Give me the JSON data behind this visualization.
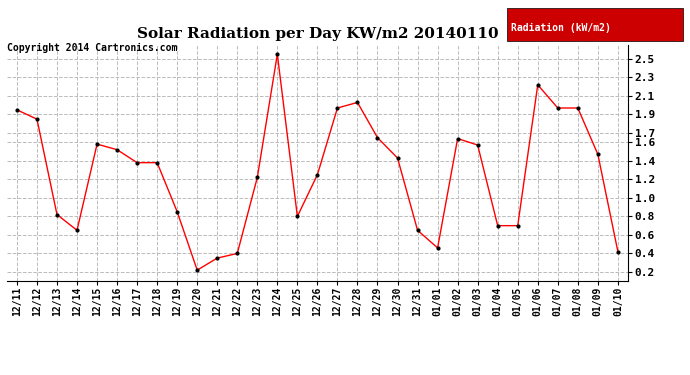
{
  "title": "Solar Radiation per Day KW/m2 20140110",
  "copyright": "Copyright 2014 Cartronics.com",
  "legend_label": "Radiation (kW/m2)",
  "x_labels": [
    "12/11",
    "12/12",
    "12/13",
    "12/14",
    "12/15",
    "12/16",
    "12/17",
    "12/18",
    "12/19",
    "12/20",
    "12/21",
    "12/22",
    "12/23",
    "12/24",
    "12/25",
    "12/26",
    "12/27",
    "12/28",
    "12/29",
    "12/30",
    "12/31",
    "01/01",
    "01/02",
    "01/03",
    "01/04",
    "01/05",
    "01/06",
    "01/07",
    "01/08",
    "01/09",
    "01/10"
  ],
  "y_values": [
    1.95,
    1.85,
    0.82,
    0.65,
    1.58,
    1.52,
    1.38,
    1.38,
    0.85,
    0.22,
    0.35,
    0.4,
    1.22,
    2.55,
    0.8,
    1.25,
    1.97,
    2.03,
    1.65,
    1.43,
    0.65,
    0.46,
    1.64,
    1.57,
    0.7,
    0.7,
    2.22,
    1.97,
    1.97,
    1.47,
    0.42
  ],
  "line_color": "red",
  "marker_color": "black",
  "ylim": [
    0.1,
    2.65
  ],
  "ytick_vals": [
    0.2,
    0.4,
    0.6,
    0.8,
    1.0,
    1.2,
    1.4,
    1.6,
    1.7,
    1.9,
    2.1,
    2.3,
    2.5
  ],
  "ytick_labels": [
    "0.2",
    "0.4",
    "0.6",
    "0.8",
    "1.0",
    "1.2",
    "1.4",
    "1.6",
    "1.7",
    "1.9",
    "2.1",
    "2.3",
    "2.5"
  ],
  "background_color": "white",
  "grid_color": "#bbbbbb",
  "title_fontsize": 11,
  "copyright_fontsize": 7,
  "tick_fontsize": 7,
  "legend_bg": "#cc0000",
  "legend_text_color": "white"
}
